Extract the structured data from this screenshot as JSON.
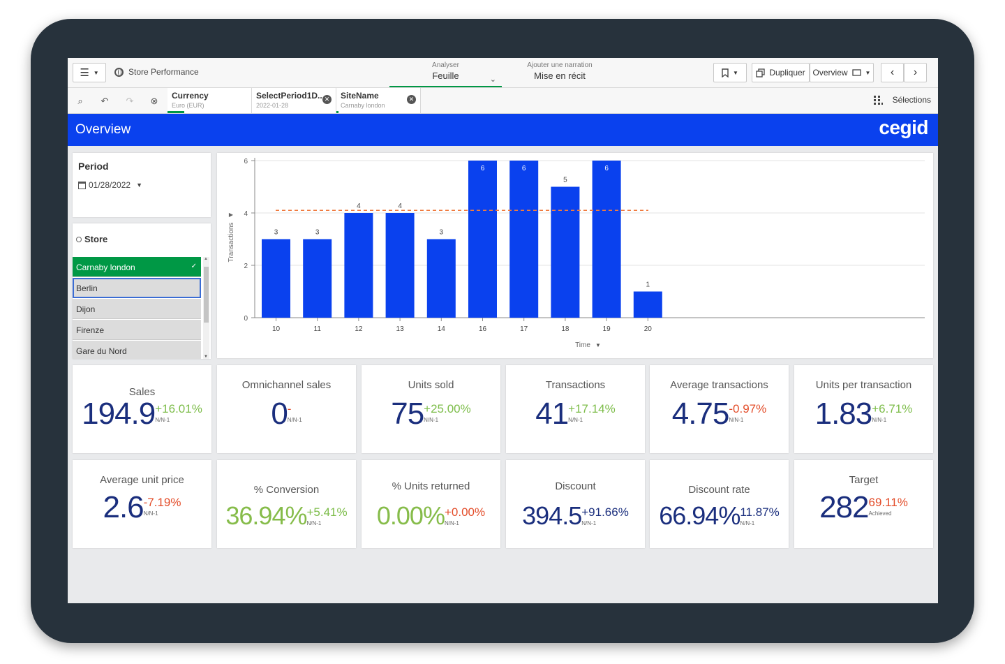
{
  "toolbar": {
    "app_title": "Store Performance",
    "analyse_small": "Analyser",
    "analyse_big": "Feuille",
    "narrate_small": "Ajouter une narration",
    "narrate_big": "Mise en récit",
    "duplicate_label": "Dupliquer",
    "sheet_label": "Overview"
  },
  "selection_bar": {
    "fields": [
      {
        "name": "Currency",
        "value": "Euro (EUR)"
      },
      {
        "name": "SelectPeriod1D...",
        "value": "2022-01-28"
      },
      {
        "name": "SiteName",
        "value": "Carnaby london"
      }
    ],
    "selections_label": "Sélections"
  },
  "header": {
    "title": "Overview",
    "logo": "cegid",
    "color": "#0a41ee"
  },
  "period": {
    "label": "Period",
    "value": "01/28/2022"
  },
  "store": {
    "label": "Store",
    "items": [
      {
        "label": "Carnaby london",
        "state": "selected"
      },
      {
        "label": "Berlin",
        "state": "focus"
      },
      {
        "label": "Dijon",
        "state": "normal"
      },
      {
        "label": "Firenze",
        "state": "normal"
      },
      {
        "label": "Gare du Nord",
        "state": "normal"
      }
    ]
  },
  "chart_data": {
    "type": "bar",
    "categories": [
      "10",
      "11",
      "12",
      "13",
      "14",
      "16",
      "17",
      "18",
      "19",
      "20"
    ],
    "values": [
      3,
      3,
      4,
      4,
      3,
      6,
      6,
      5,
      6,
      1
    ],
    "xlabel": "Time",
    "ylabel": "Transactions",
    "ylim": [
      0,
      6
    ],
    "yticks": [
      0,
      2,
      4,
      6
    ],
    "reference_line": 4.1,
    "bar_color": "#0a41ee",
    "reference_color": "#f07b3f",
    "grid": true
  },
  "kpis": [
    {
      "title": "Sales",
      "value": "194.9",
      "delta": "+16.01%",
      "sub": "N/N-1",
      "delta_type": "pos"
    },
    {
      "title": "Omnichannel sales",
      "value": "0",
      "delta": "-",
      "sub": "N/N-1",
      "delta_type": "neg"
    },
    {
      "title": "Units sold",
      "value": "75",
      "delta": "+25.00%",
      "sub": "N/N-1",
      "delta_type": "pos"
    },
    {
      "title": "Transactions",
      "value": "41",
      "delta": "+17.14%",
      "sub": "N/N-1",
      "delta_type": "pos"
    },
    {
      "title": "Average transactions",
      "value": "4.75",
      "delta": "-0.97%",
      "sub": "N/N-1",
      "delta_type": "neg"
    },
    {
      "title": "Units per transaction",
      "value": "1.83",
      "delta": "+6.71%",
      "sub": "N/N-1",
      "delta_type": "pos"
    },
    {
      "title": "Average unit price",
      "value": "2.6",
      "delta": "-7.19%",
      "sub": "N/N-1",
      "delta_type": "neg"
    },
    {
      "title": "% Conversion",
      "value": "36.94%",
      "delta": "+5.41%",
      "sub": "N/N-1",
      "delta_type": "pos"
    },
    {
      "title": "% Units returned",
      "value": "0.00%",
      "delta": "+0.00%",
      "sub": "N/N-1",
      "delta_type": "neg"
    },
    {
      "title": "Discount",
      "value": "394.5",
      "delta": "+91.66%",
      "sub": "N/N-1",
      "delta_type": "dark"
    },
    {
      "title": "Discount rate",
      "value": "66.94%",
      "delta": "11.87%",
      "sub": "N/N-1",
      "delta_type": "dark"
    },
    {
      "title": "Target",
      "value": "282",
      "delta": "69.11%",
      "sub": "Achieved",
      "delta_type": "neg"
    }
  ]
}
